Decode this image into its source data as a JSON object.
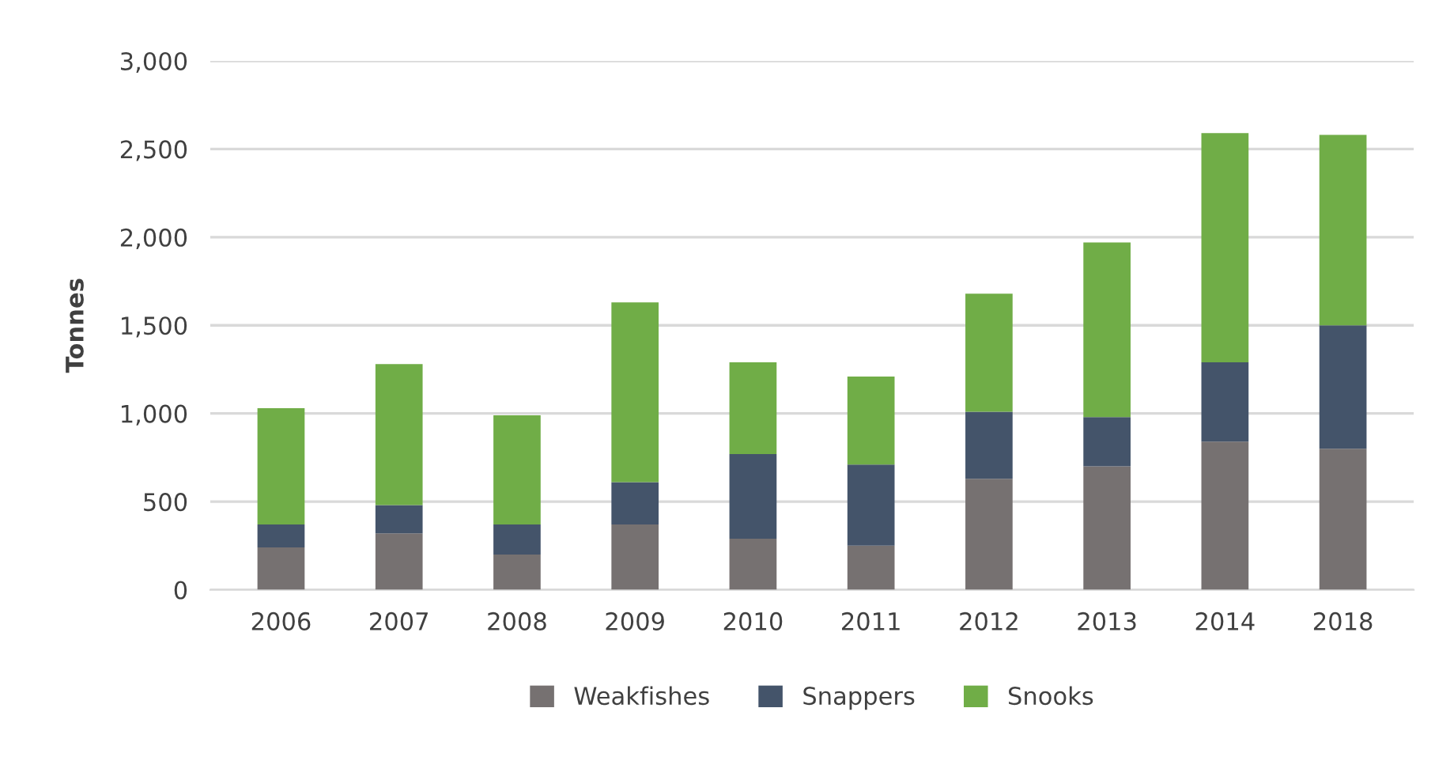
{
  "chart_data": {
    "type": "bar",
    "stacked": true,
    "ylabel": "Tonnes",
    "categories": [
      "2006",
      "2007",
      "2008",
      "2009",
      "2010",
      "2011",
      "2012",
      "2013",
      "2014",
      "2018"
    ],
    "series": [
      {
        "name": "Weakfishes",
        "color": "#767171",
        "values": [
          240,
          320,
          200,
          370,
          290,
          250,
          630,
          700,
          840,
          800
        ]
      },
      {
        "name": "Snappers",
        "color": "#44546a",
        "values": [
          130,
          160,
          170,
          240,
          480,
          460,
          380,
          280,
          450,
          700
        ]
      },
      {
        "name": "Snooks",
        "color": "#70ad47",
        "values": [
          660,
          800,
          620,
          1020,
          520,
          500,
          670,
          990,
          1300,
          1080
        ]
      }
    ],
    "ylim": [
      0,
      3000
    ],
    "yticks": [
      {
        "value": 0,
        "label": "0"
      },
      {
        "value": 500,
        "label": "500"
      },
      {
        "value": 1000,
        "label": "1,000"
      },
      {
        "value": 1500,
        "label": "1,500"
      },
      {
        "value": 2000,
        "label": "2,000"
      },
      {
        "value": 2500,
        "label": "2,500"
      },
      {
        "value": 3000,
        "label": "3,000"
      }
    ],
    "grid": "y",
    "legend": "bottom"
  }
}
